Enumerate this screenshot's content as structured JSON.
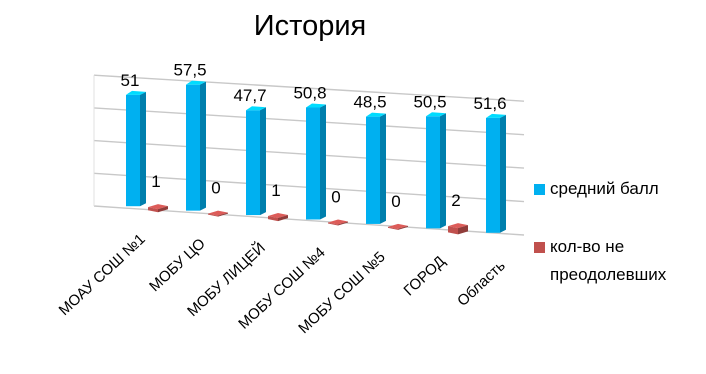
{
  "chart_data": {
    "type": "bar",
    "title": "История",
    "categories": [
      "МОАУ СОШ №1",
      "МОБУ ЦО",
      "МОБУ ЛИЦЕЙ",
      "МОБУ СОШ №4",
      "МОБУ СОШ №5",
      "ГОРОД",
      "Область"
    ],
    "series": [
      {
        "name": "средний балл",
        "values": [
          51,
          57.5,
          47.7,
          50.8,
          48.5,
          50.5,
          51.6
        ],
        "labels": [
          "51",
          "57,5",
          "47,7",
          "50,8",
          "48,5",
          "50,5",
          "51,6"
        ],
        "color": "#00B0F0"
      },
      {
        "name": "кол-во не преодолевших",
        "values": [
          1,
          0,
          1,
          0,
          0,
          2,
          null
        ],
        "labels": [
          "1",
          "0",
          "1",
          "0",
          "0",
          "2",
          ""
        ],
        "color": "#C0504D"
      }
    ],
    "ylim": [
      0,
      60
    ],
    "grid": true,
    "legend": "right",
    "style": "3d-perspective"
  }
}
